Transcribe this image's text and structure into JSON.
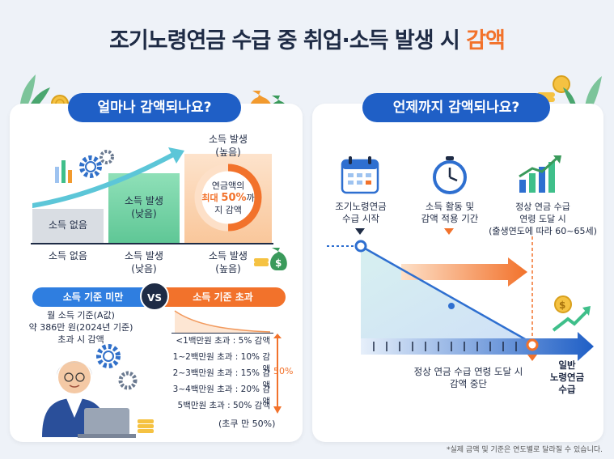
{
  "title": {
    "main": "조기노령연금 수급 중 취업·소득 발생 시 ",
    "highlight": "감액"
  },
  "left": {
    "pill": "얼마나 감액되나요?",
    "bars": [
      {
        "inside": "소득 없음",
        "below": "소득 없음"
      },
      {
        "inside": "소득 발생\n(낮음)",
        "below": "소득 발생\n(낮음)"
      },
      {
        "inside": "소득 발생\n(높음)",
        "below": "소득 발생\n(높음)"
      }
    ],
    "ring": {
      "line1": "연금액의",
      "line2a": "최대 ",
      "line2b": "50%",
      "line2c": "까",
      "line3": "지 감액"
    },
    "vs": {
      "left": "소득 기준 미만",
      "center": "VS",
      "right": "소득 기준 초과"
    },
    "threshold": "월 소득 기준(A값)\n약 386만 원(2024년 기준)\n초과 시 감액",
    "tiers": [
      "<1백만원 초과 : 5% 감액",
      "1~2백만원 초과 : 10% 감액",
      "2~3백만원 초과 : 15% 감액",
      "3~4백만원 초과 : 20% 감액",
      "5백만원 초과 : 50% 감액"
    ],
    "max_label": "50%",
    "cap_note": "(초쿠 만 50%)"
  },
  "right": {
    "pill": "언제까지 감액되나요?",
    "milestones": [
      {
        "label": "조기노령연금\n수급 시작"
      },
      {
        "label": "소득 활동 및\n감액 적용 기간"
      },
      {
        "label": "정상 연금 수급\n연령 도달 시\n(출생연도에 따라 60~65세)"
      }
    ],
    "stop_label": "정상 연금 수급 연령 도달 시\n감액 중단",
    "end_label": "일반\n노령연금\n수급"
  },
  "footnote": "*실제 금액 및 기준은 연도별로 달라질 수 있습니다.",
  "colors": {
    "blue": "#1f5fc6",
    "orange": "#f2722b",
    "green": "#3fbf8a",
    "navy": "#1e2b45"
  }
}
